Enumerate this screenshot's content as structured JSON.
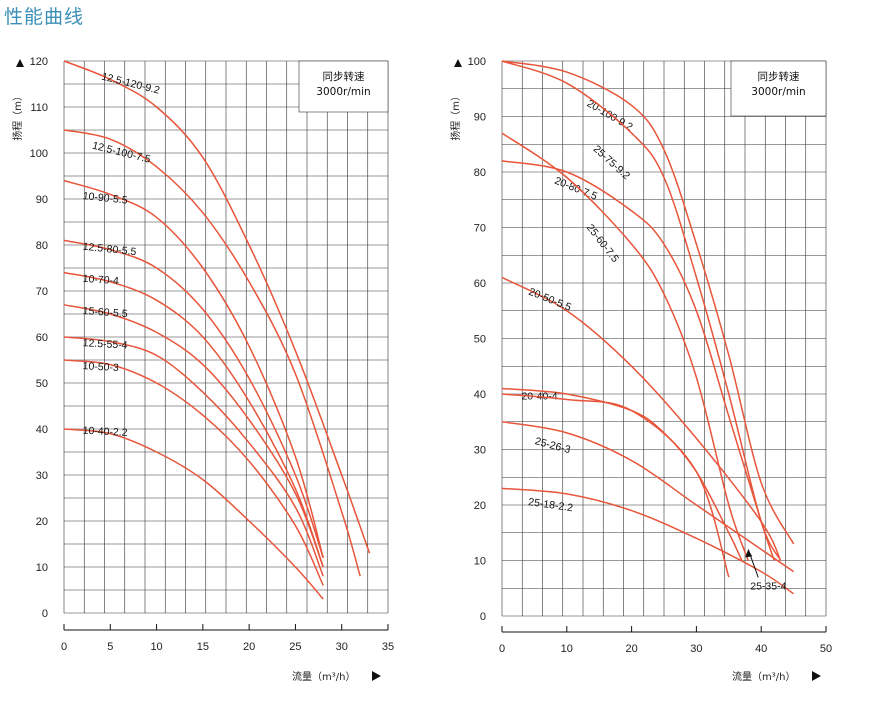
{
  "page_title": "性能曲线",
  "colors": {
    "curve": "#e8553a",
    "grid": "#333333",
    "title": "#3b8fb8"
  },
  "chart_data": [
    {
      "type": "line",
      "title": "",
      "xlabel": "流量（m³/h）",
      "ylabel": "扬程（m）",
      "xlim": [
        0,
        35
      ],
      "ylim": [
        0,
        120
      ],
      "x_ticks": [
        "0",
        "5",
        "10",
        "15",
        "20",
        "25",
        "30",
        "35"
      ],
      "y_ticks": [
        "0",
        "10",
        "20",
        "30",
        "40",
        "50",
        "60",
        "70",
        "80",
        "90",
        "100",
        "110",
        "120"
      ],
      "grid": true,
      "note_line1": "同步转速",
      "note_line2": "3000r/min",
      "series": [
        {
          "name": "12.5-120-9.2",
          "x": [
            0,
            5,
            10,
            15,
            20,
            25,
            30,
            33
          ],
          "y": [
            120,
            116,
            110,
            99,
            80,
            57,
            30,
            13
          ]
        },
        {
          "name": "12.5-100-7.5",
          "x": [
            0,
            5,
            10,
            15,
            20,
            25,
            30,
            32
          ],
          "y": [
            105,
            103,
            97,
            87,
            72,
            52,
            22,
            8
          ]
        },
        {
          "name": "10-90-5.5",
          "x": [
            0,
            5,
            10,
            15,
            20,
            25,
            28
          ],
          "y": [
            94,
            91,
            86,
            75,
            58,
            34,
            12
          ]
        },
        {
          "name": "12.5-80-5.5",
          "x": [
            0,
            5,
            10,
            15,
            20,
            25,
            28
          ],
          "y": [
            81,
            79,
            75,
            66,
            51,
            30,
            12
          ]
        },
        {
          "name": "10-70-4",
          "x": [
            0,
            5,
            10,
            15,
            20,
            25,
            28
          ],
          "y": [
            74,
            72,
            68,
            60,
            46,
            27,
            10
          ]
        },
        {
          "name": "15-60-5.5",
          "x": [
            0,
            5,
            10,
            15,
            20,
            25,
            28
          ],
          "y": [
            67,
            65,
            61,
            54,
            42,
            26,
            10
          ]
        },
        {
          "name": "12.5-55-4",
          "x": [
            0,
            5,
            10,
            15,
            20,
            25,
            28
          ],
          "y": [
            60,
            59,
            56,
            48,
            37,
            23,
            8
          ]
        },
        {
          "name": "10-50-3",
          "x": [
            0,
            5,
            10,
            15,
            20,
            25,
            28
          ],
          "y": [
            55,
            54,
            50,
            43,
            33,
            19,
            6
          ]
        },
        {
          "name": "10-40-2.2",
          "x": [
            0,
            5,
            10,
            15,
            20,
            25,
            28
          ],
          "y": [
            40,
            39,
            35,
            29,
            20,
            10,
            3
          ]
        }
      ]
    },
    {
      "type": "line",
      "title": "",
      "xlabel": "流量（m³/h）",
      "ylabel": "扬程（m）",
      "xlim": [
        0,
        50
      ],
      "ylim": [
        0,
        100
      ],
      "x_ticks": [
        "0",
        "10",
        "20",
        "30",
        "40",
        "50"
      ],
      "y_ticks": [
        "0",
        "10",
        "20",
        "30",
        "40",
        "50",
        "60",
        "70",
        "80",
        "90",
        "100"
      ],
      "grid": true,
      "note_line1": "同步转速",
      "note_line2": "3000r/min",
      "arrow_label": "25-35-4",
      "series": [
        {
          "name": "20-100-9.2",
          "x": [
            0,
            10,
            20,
            25,
            30,
            35,
            40,
            45
          ],
          "y": [
            100,
            98,
            92,
            84,
            67,
            47,
            24,
            13
          ]
        },
        {
          "name": "25-75-9.2",
          "x": [
            0,
            10,
            20,
            25,
            30,
            35,
            40,
            43
          ],
          "y": [
            100,
            96,
            87,
            79,
            61,
            40,
            17,
            10
          ]
        },
        {
          "name": "20-80-7.5",
          "x": [
            0,
            10,
            20,
            25,
            30,
            35,
            40,
            42
          ],
          "y": [
            82,
            80,
            73,
            67,
            55,
            36,
            17,
            10
          ]
        },
        {
          "name": "25-60-7.5",
          "x": [
            0,
            10,
            20,
            25,
            30,
            35,
            38
          ],
          "y": [
            87,
            79,
            67,
            58,
            43,
            20,
            10
          ]
        },
        {
          "name": "20-50-5.5",
          "x": [
            0,
            10,
            20,
            30,
            40,
            43
          ],
          "y": [
            61,
            55,
            45,
            32,
            17,
            10
          ]
        },
        {
          "name": "20-40-4",
          "x": [
            0,
            10,
            20,
            25,
            30,
            35,
            37
          ],
          "y": [
            41,
            40,
            37,
            33,
            26,
            15,
            10
          ]
        },
        {
          "name": "25-35-4",
          "x": [
            0,
            10,
            20,
            30,
            35
          ],
          "y": [
            40,
            39,
            37,
            26,
            7
          ]
        },
        {
          "name": "25-26-3",
          "x": [
            0,
            10,
            20,
            30,
            40,
            45
          ],
          "y": [
            35,
            33,
            28,
            20,
            12,
            8
          ]
        },
        {
          "name": "25-18-2.2",
          "x": [
            0,
            10,
            20,
            30,
            40,
            45
          ],
          "y": [
            23,
            22,
            19,
            14,
            8,
            4
          ]
        }
      ]
    }
  ]
}
